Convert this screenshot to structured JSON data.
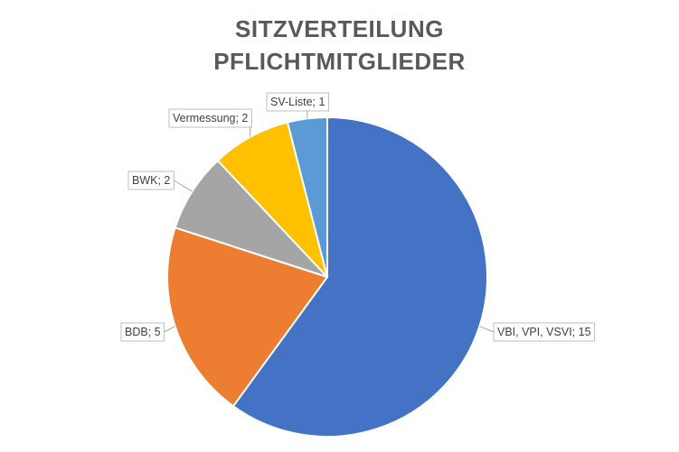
{
  "chart_data": {
    "type": "pie",
    "title_lines": [
      "SITZVERTEILUNG",
      "PFLICHTMITGLIEDER"
    ],
    "slices": [
      {
        "label": "VBI, VPI, VSVI",
        "value": 15,
        "display": "VBI, VPI, VSVI; 15",
        "color": "#4472C4"
      },
      {
        "label": "BDB",
        "value": 5,
        "display": "BDB; 5",
        "color": "#ED7D31"
      },
      {
        "label": "BWK",
        "value": 2,
        "display": "BWK; 2",
        "color": "#A5A5A5"
      },
      {
        "label": "Vermessung",
        "value": 2,
        "display": "Vermessung; 2",
        "color": "#FFC000"
      },
      {
        "label": "SV-Liste",
        "value": 1,
        "display": "SV-Liste; 1",
        "color": "#5B9BD5"
      }
    ],
    "legend": "none",
    "data_labels": "outside-with-callout"
  }
}
